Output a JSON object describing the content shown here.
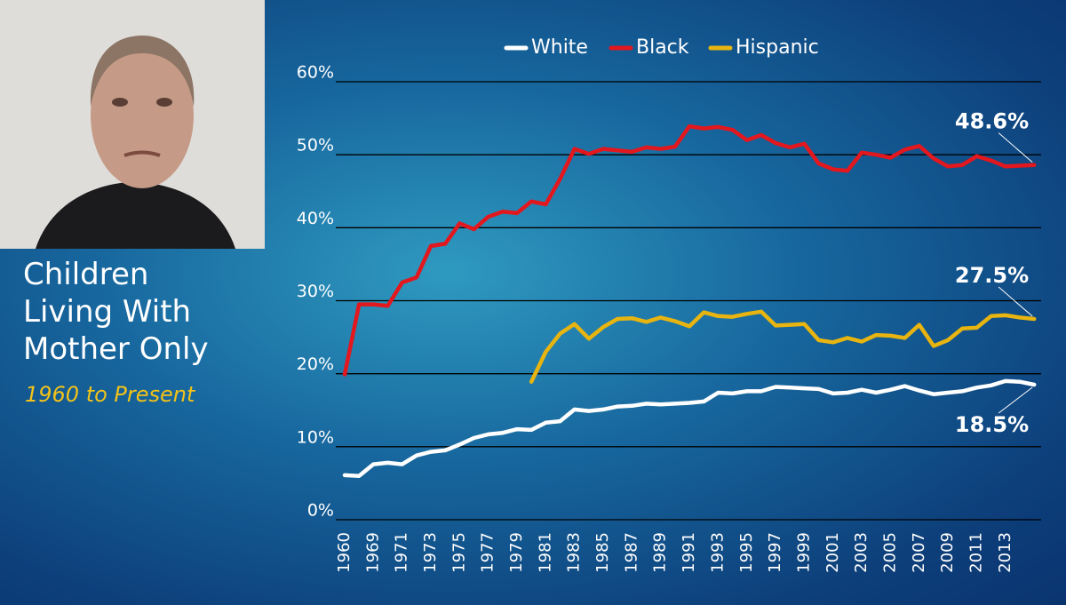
{
  "chart_data": {
    "type": "line",
    "title": "Children Living With Mother Only",
    "subtitle": "1960 to Present",
    "categories": [
      "1960",
      null,
      "1969",
      null,
      "1971",
      null,
      "1973",
      null,
      "1975",
      null,
      "1977",
      null,
      "1979",
      null,
      "1981",
      null,
      "1983",
      null,
      "1985",
      null,
      "1987",
      null,
      "1989",
      null,
      "1991",
      null,
      "1993",
      null,
      "1995",
      null,
      "1997",
      null,
      "1999",
      null,
      "2001",
      null,
      "2003",
      null,
      "2005",
      null,
      "2007",
      null,
      "2009",
      null,
      "2011",
      null,
      "2013",
      null,
      null
    ],
    "series": [
      {
        "name": "White",
        "color": "#ffffff",
        "values": [
          6.1,
          6.0,
          7.6,
          7.8,
          7.6,
          8.8,
          9.3,
          9.5,
          10.3,
          11.2,
          11.7,
          11.9,
          12.4,
          12.3,
          13.3,
          13.5,
          15.1,
          14.9,
          15.1,
          15.5,
          15.6,
          15.9,
          15.8,
          15.9,
          16.0,
          16.2,
          17.4,
          17.3,
          17.6,
          17.6,
          18.2,
          18.1,
          18.0,
          17.9,
          17.3,
          17.4,
          17.8,
          17.4,
          17.8,
          18.3,
          17.7,
          17.2,
          17.4,
          17.6,
          18.1,
          18.4,
          19.0,
          18.9,
          18.5
        ],
        "value_labels": [
          null,
          null,
          null,
          null,
          null,
          null,
          null,
          null,
          null,
          null,
          null,
          null,
          null,
          null,
          null,
          null,
          null,
          null,
          null,
          null,
          null,
          null,
          null,
          null,
          null,
          null,
          null,
          null,
          null,
          null,
          null,
          null,
          null,
          null,
          null,
          null,
          null,
          null,
          null,
          null,
          null,
          null,
          null,
          null,
          null,
          null,
          null,
          null,
          "18.5%"
        ]
      },
      {
        "name": "Black",
        "color": "#e3171e",
        "values": [
          19.9,
          29.5,
          29.5,
          29.3,
          32.5,
          33.2,
          37.5,
          37.8,
          40.6,
          39.8,
          41.5,
          42.2,
          42.0,
          43.6,
          43.2,
          46.7,
          50.8,
          50.1,
          50.8,
          50.6,
          50.4,
          51.0,
          50.8,
          51.1,
          53.9,
          53.6,
          53.8,
          53.4,
          52.0,
          52.7,
          51.6,
          51.0,
          51.5,
          48.8,
          48.0,
          47.8,
          50.3,
          50.0,
          49.6,
          50.7,
          51.2,
          49.5,
          48.4,
          48.6,
          49.8,
          49.2,
          48.4,
          48.5,
          48.6
        ],
        "value_labels": [
          null,
          null,
          null,
          null,
          null,
          null,
          null,
          null,
          null,
          null,
          null,
          null,
          null,
          null,
          null,
          null,
          null,
          null,
          null,
          null,
          null,
          null,
          null,
          null,
          null,
          null,
          null,
          null,
          null,
          null,
          null,
          null,
          null,
          null,
          null,
          null,
          null,
          null,
          null,
          null,
          null,
          null,
          null,
          null,
          null,
          null,
          null,
          null,
          "48.6%"
        ]
      },
      {
        "name": "Hispanic",
        "color": "#e8b40f",
        "values": [
          null,
          null,
          null,
          null,
          null,
          null,
          null,
          null,
          null,
          null,
          null,
          null,
          null,
          18.9,
          23.0,
          25.5,
          26.8,
          24.8,
          26.4,
          27.5,
          27.6,
          27.1,
          27.7,
          27.2,
          26.5,
          28.4,
          27.9,
          27.8,
          28.2,
          28.5,
          26.6,
          26.7,
          26.8,
          24.6,
          24.3,
          24.9,
          24.4,
          25.3,
          25.2,
          24.9,
          26.7,
          23.8,
          24.6,
          26.2,
          26.3,
          27.9,
          28.0,
          27.7,
          27.5
        ],
        "value_labels": [
          null,
          null,
          null,
          null,
          null,
          null,
          null,
          null,
          null,
          null,
          null,
          null,
          null,
          null,
          null,
          null,
          null,
          null,
          null,
          null,
          null,
          null,
          null,
          null,
          null,
          null,
          null,
          null,
          null,
          null,
          null,
          null,
          null,
          null,
          null,
          null,
          null,
          null,
          null,
          null,
          null,
          null,
          null,
          null,
          null,
          null,
          null,
          null,
          "27.5%"
        ]
      }
    ],
    "ylim": [
      0,
      60
    ],
    "yticks": [
      {
        "value": 0,
        "label": "0%"
      },
      {
        "value": 10,
        "label": "10%"
      },
      {
        "value": 20,
        "label": "20%"
      },
      {
        "value": 30,
        "label": "30%"
      },
      {
        "value": 40,
        "label": "40%"
      },
      {
        "value": 50,
        "label": "50%"
      },
      {
        "value": 60,
        "label": "60%"
      }
    ],
    "grid": true,
    "legend": "top"
  }
}
